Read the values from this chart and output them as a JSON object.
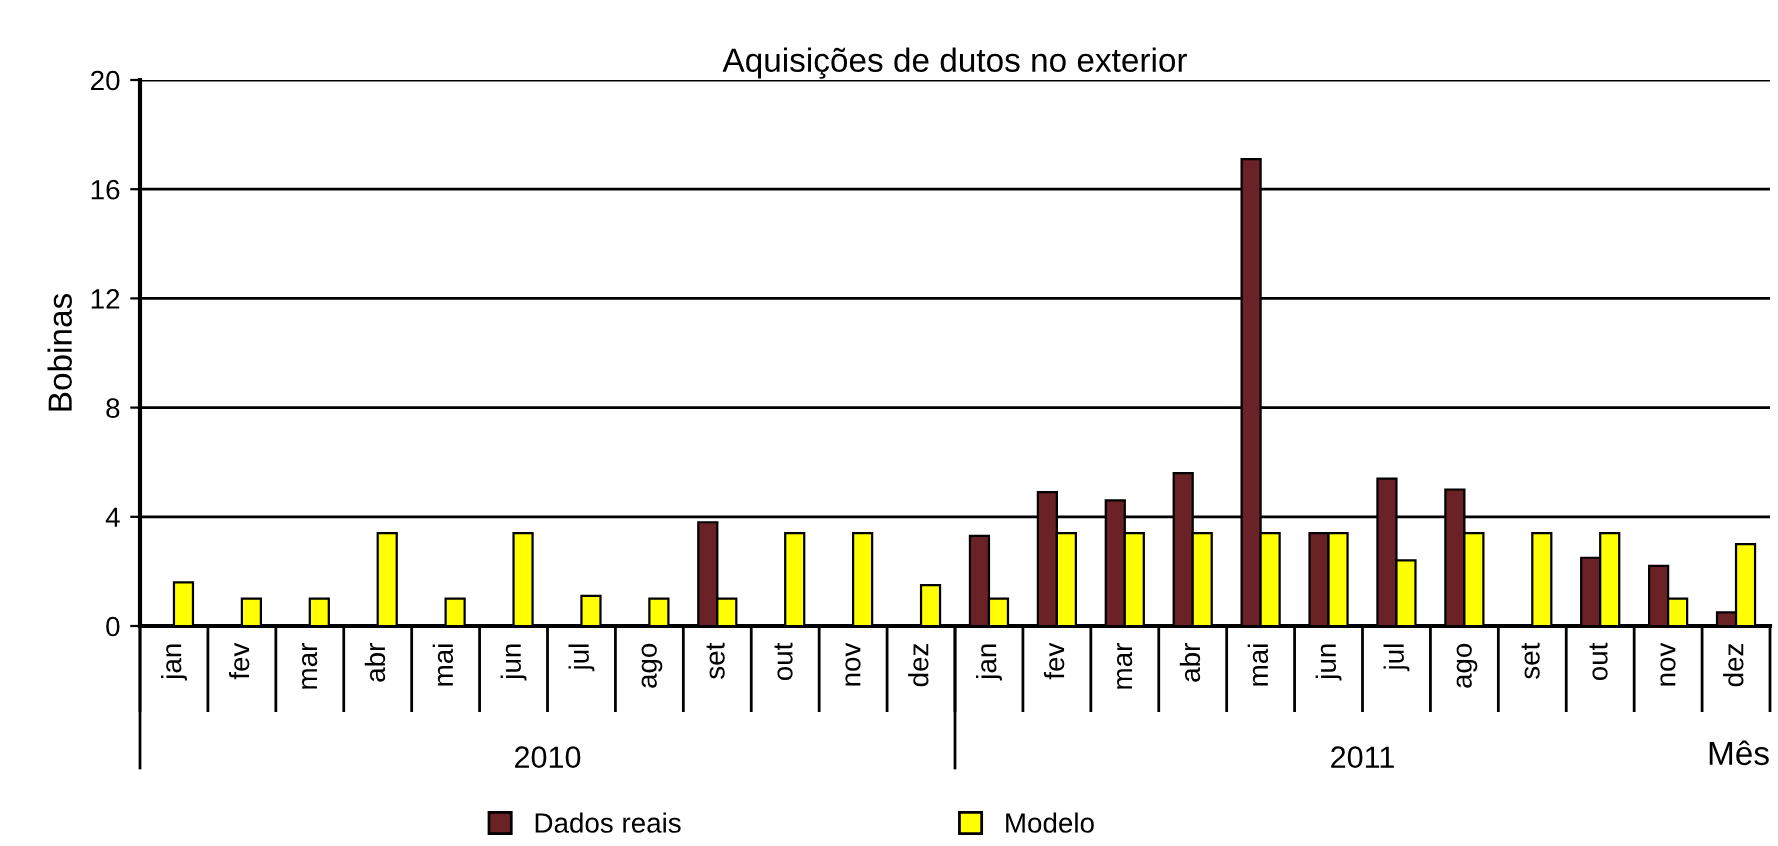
{
  "chart_data": {
    "type": "bar",
    "title": "Aquisições de dutos no exterior",
    "xlabel": "Mês",
    "ylabel": "Bobinas",
    "categories": [
      "jan",
      "fev",
      "mar",
      "abr",
      "mai",
      "jun",
      "jul",
      "ago",
      "set",
      "out",
      "nov",
      "dez",
      "jan",
      "fev",
      "mar",
      "abr",
      "mai",
      "jun",
      "jul",
      "ago",
      "set",
      "out",
      "nov",
      "dez"
    ],
    "series": [
      {
        "name": "Dados reais",
        "color": "#6b2226",
        "values": [
          null,
          null,
          null,
          null,
          null,
          null,
          null,
          null,
          3.8,
          null,
          null,
          null,
          3.3,
          4.9,
          4.6,
          5.6,
          17.1,
          3.4,
          5.4,
          5.0,
          null,
          2.5,
          2.2,
          0.5
        ]
      },
      {
        "name": "Modelo",
        "color": "#ffff00",
        "values": [
          1.6,
          1.0,
          1.0,
          3.4,
          1.0,
          3.4,
          1.1,
          1.0,
          1.0,
          3.4,
          3.4,
          1.5,
          1.0,
          3.4,
          3.4,
          3.4,
          3.4,
          3.4,
          2.4,
          3.4,
          3.4,
          3.4,
          1.0,
          3.0
        ]
      }
    ],
    "annotations": [
      "2010",
      "2011"
    ],
    "ylim": [
      0,
      20
    ],
    "yticks": [
      0,
      4,
      8,
      12,
      16,
      20
    ],
    "grid": "y",
    "legend": "bottom"
  }
}
